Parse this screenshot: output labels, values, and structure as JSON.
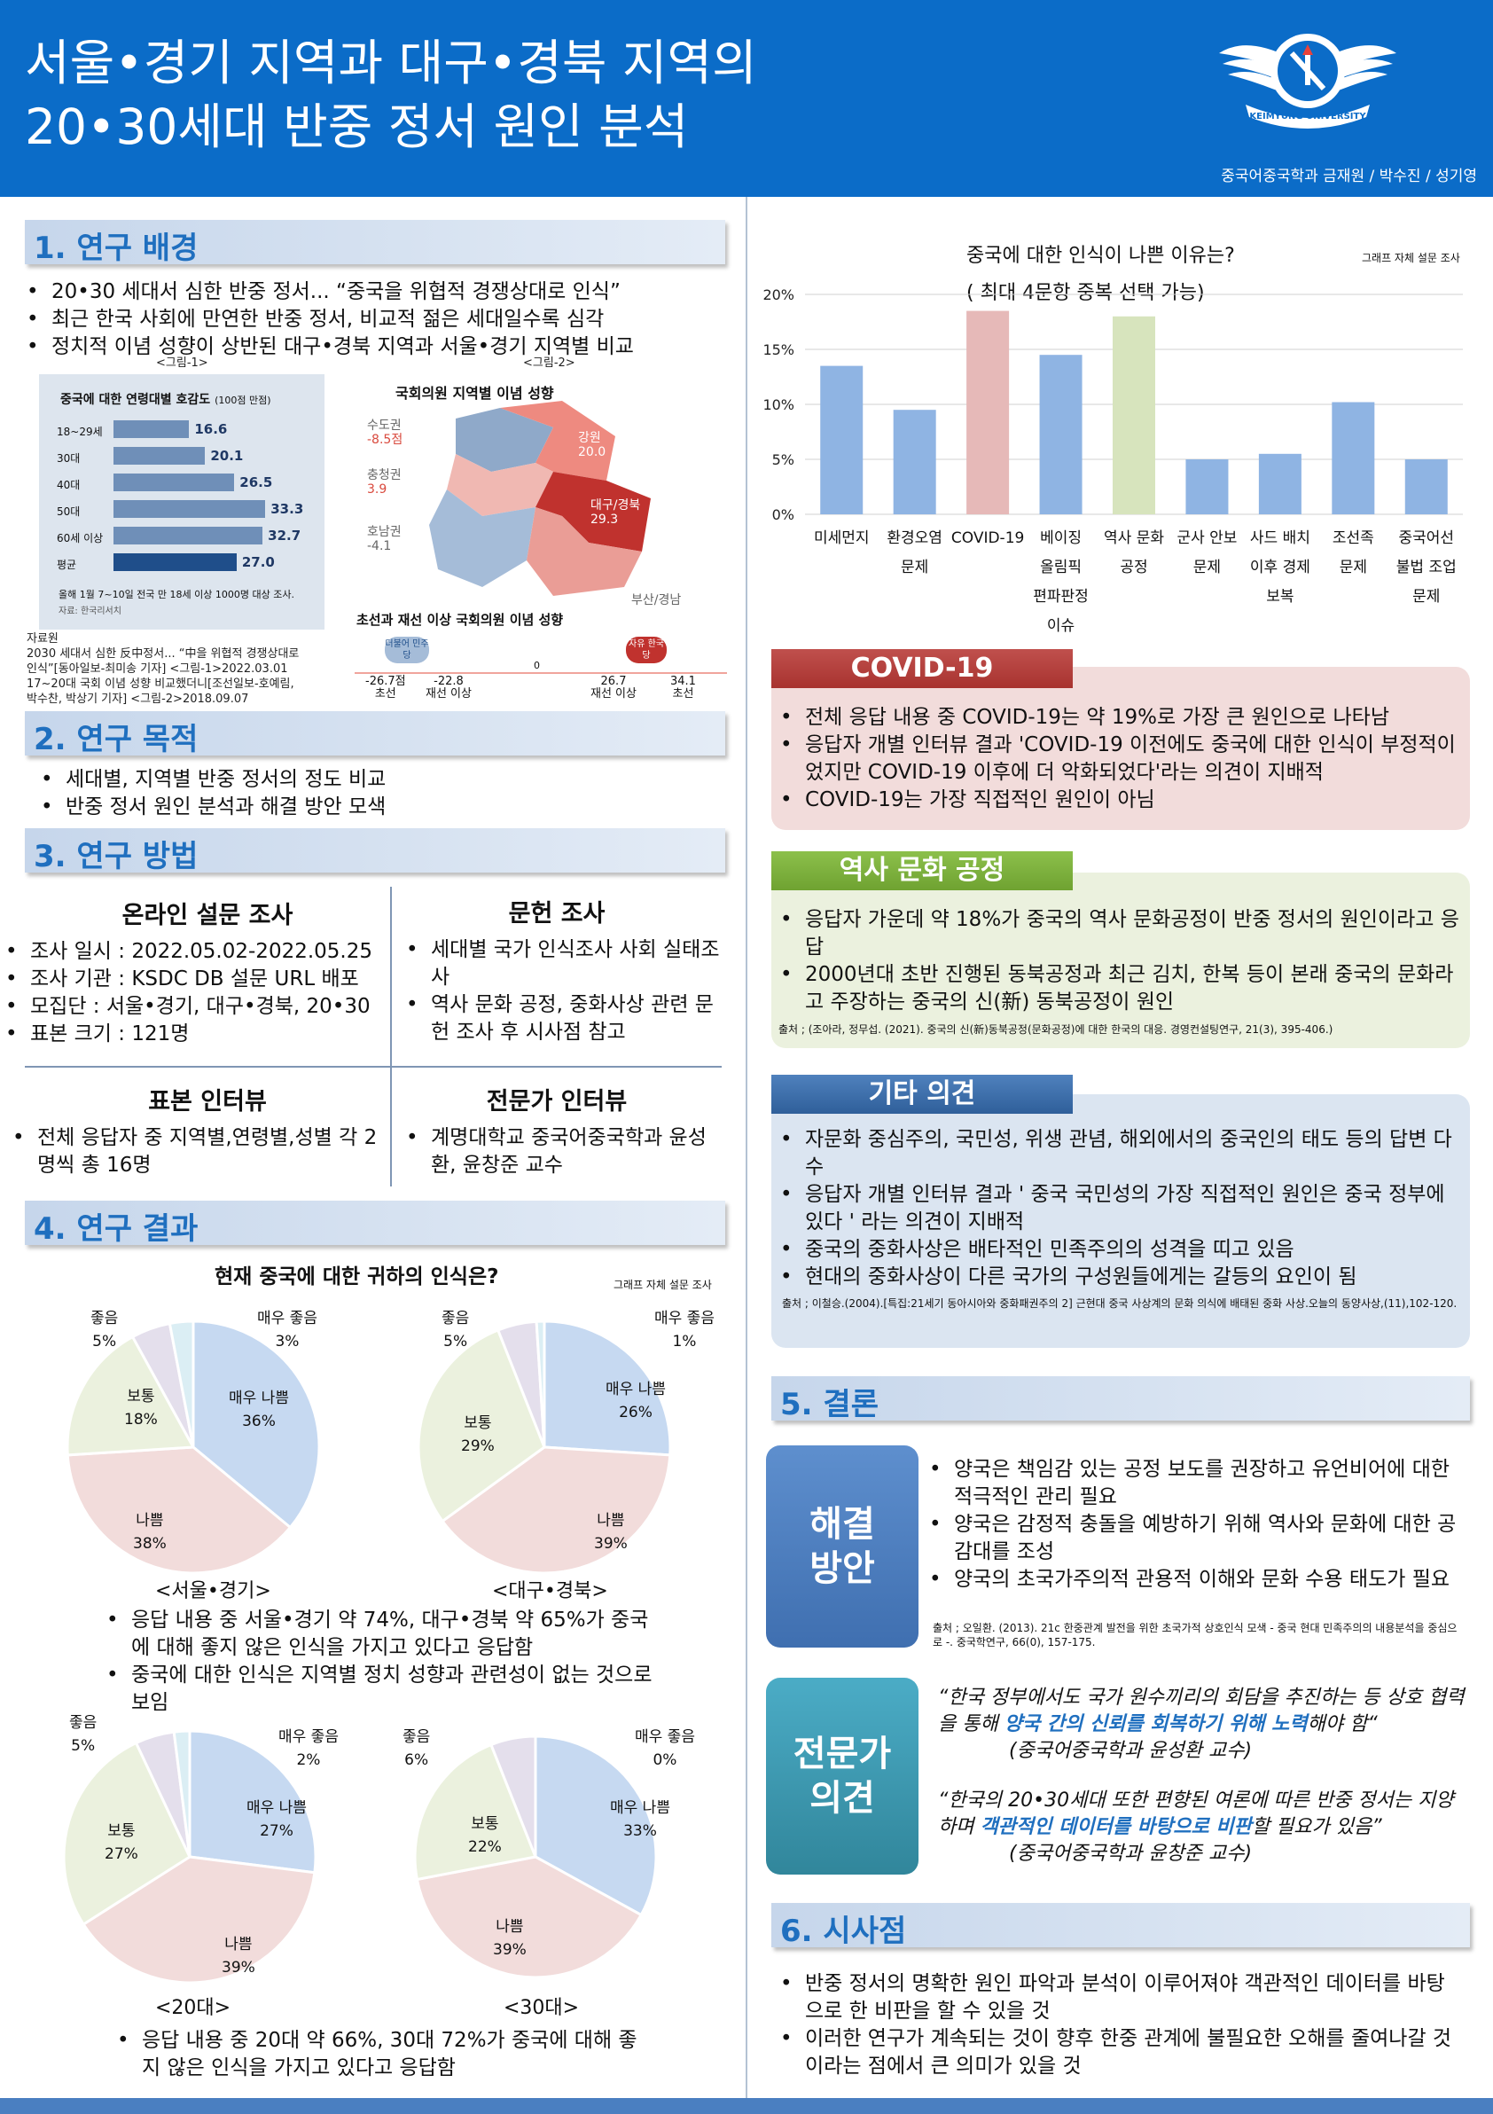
{
  "header": {
    "title_line1": "서울•경기 지역과 대구•경북 지역의",
    "title_line2": "20•30세대 반중 정서 원인 분석",
    "authors": "중국어중국학과 금재원 / 박수진 / 성기영",
    "logo_text": "KEIMYUNG UNIVERSITY"
  },
  "colors": {
    "header_blue": "#0b6cc8",
    "section_text": "#1f6fbf"
  },
  "s1": {
    "title": "1. 연구 배경",
    "bullets": [
      "20•30 세대서 심한 반중 정서... “중국을 위협적 경쟁상대로 인식”",
      "최근 한국 사회에 만연한 반중 정서, 비교적 젊은 세대일수록 심각",
      "정치적 이념 성향이 상반된 대구•경북 지역과 서울•경기 지역별 비교"
    ],
    "fig1_label": "<그림-1>",
    "fig2_label": "<그림-2>",
    "fig1": {
      "title": "중국에 대한 연령대별 호감도",
      "title_unit": "(100점 만점)",
      "rows": [
        {
          "label": "18~29세",
          "value": "16.6",
          "v": 16.6
        },
        {
          "label": "30대",
          "value": "20.1",
          "v": 20.1
        },
        {
          "label": "40대",
          "value": "26.5",
          "v": 26.5
        },
        {
          "label": "50대",
          "value": "33.3",
          "v": 33.3
        },
        {
          "label": "60세 이상",
          "value": "32.7",
          "v": 32.7
        },
        {
          "label": "평균",
          "value": "27.0",
          "v": 27.0
        }
      ],
      "note": "올해 1월 7~10일 전국 만 18세 이상 1000명 대상 조사.",
      "source": "자료: 한국리서치"
    },
    "fig2": {
      "title": "국회의원 지역별 이념 성향",
      "regions": [
        {
          "name": "수도권",
          "value": "-8.5점"
        },
        {
          "name": "충청권",
          "value": "3.9"
        },
        {
          "name": "호남권",
          "value": "-4.1"
        },
        {
          "name": "강원",
          "value": "20.0"
        },
        {
          "name": "대구/경북",
          "value": "29.3"
        },
        {
          "name": "부산/경남",
          "value": ""
        }
      ],
      "subtitle": "초선과 재선 이상 국회의원 이념 성향",
      "party_left": "더불어 민주당",
      "party_right": "자유 한국당",
      "zero": "0",
      "scale": [
        {
          "v": "-26.7점",
          "l": "초선"
        },
        {
          "v": "-22.8",
          "l": "재선 이상"
        },
        {
          "v": "26.7",
          "l": "재선 이상"
        },
        {
          "v": "34.1",
          "l": "초선"
        }
      ]
    },
    "sources": [
      "자료원",
      "2030 세대서 심한 反中정서... “中을 위협적 경쟁상대로",
      "인식”[동아일보-최미송 기자] <그림-1>2022.03.01",
      "17~20대 국회 이념 성향 비교했더니[조선일보-호예림,",
      "박수찬, 박상기 기자] <그림-2>2018.09.07"
    ]
  },
  "s2": {
    "title": "2. 연구 목적",
    "bullets": [
      "세대별, 지역별 반중 정서의 정도 비교",
      "반중 정서 원인 분석과 해결 방안 모색"
    ]
  },
  "s3": {
    "title": "3. 연구 방법",
    "online_h": "온라인 설문 조사",
    "online": [
      "조사 일시 : 2022.05.02-2022.05.25",
      "조사 기관 : KSDC DB 설문 URL 배포",
      "모집단 : 서울•경기, 대구•경북, 20•30",
      "표본 크기 : 121명"
    ],
    "lit_h": "문헌 조사",
    "lit": [
      "세대별 국가 인식조사 사회 실태조사",
      "역사 문화 공정, 중화사상 관련 문헌 조사 후 시사점 참고"
    ],
    "interview_h": "표본 인터뷰",
    "interview": [
      "전체 응답자 중 지역별,연령별,성별 각 2명씩 총 16명"
    ],
    "expert_h": "전문가 인터뷰",
    "expert": [
      "계명대학교 중국어중국학과 윤성환, 윤창준 교수"
    ]
  },
  "s4": {
    "title": "4. 연구 결과",
    "chart_title": "현재 중국에 대한 귀하의 인식은?",
    "chart_source": "그래프 자체 설문 조사",
    "bullets_region": [
      "응답 내용 중 서울•경기 약 74%, 대구•경북 약 65%가 중국에 대해 좋지 않은 인식을 가지고 있다고 응답함",
      "중국에 대한 인식은 지역별 정치 성향과 관련성이 없는 것으로 보임"
    ],
    "bullets_age": [
      "응답 내용 중 20대 약 66%, 30대 72%가 중국에 대해 좋지 않은 인식을 가지고 있다고 응답함"
    ]
  },
  "chart_data": [
    {
      "type": "pie",
      "title": "<서울•경기>",
      "categories": [
        "매우 나쁨",
        "나쁨",
        "보통",
        "좋음",
        "매우 좋음"
      ],
      "values": [
        36,
        38,
        18,
        5,
        3
      ],
      "labels": [
        "36%",
        "38%",
        "18%",
        "5%",
        "3%"
      ]
    },
    {
      "type": "pie",
      "title": "<대구•경북>",
      "categories": [
        "매우 나쁨",
        "나쁨",
        "보통",
        "좋음",
        "매우 좋음"
      ],
      "values": [
        26,
        39,
        29,
        5,
        1
      ],
      "labels": [
        "26%",
        "39%",
        "29%",
        "5%",
        "1%"
      ]
    },
    {
      "type": "pie",
      "title": "<20대>",
      "categories": [
        "매우 나쁨",
        "나쁨",
        "보통",
        "좋음",
        "매우 좋음"
      ],
      "values": [
        27,
        39,
        27,
        5,
        2
      ],
      "labels": [
        "27%",
        "39%",
        "27%",
        "5%",
        "2%"
      ]
    },
    {
      "type": "pie",
      "title": "<30대>",
      "categories": [
        "매우 나쁨",
        "나쁨",
        "보통",
        "좋음",
        "매우 좋음"
      ],
      "values": [
        33,
        39,
        22,
        6,
        0
      ],
      "labels": [
        "33%",
        "39%",
        "22%",
        "6%",
        "0%"
      ]
    },
    {
      "type": "bar",
      "title_line1": "중국에 대한 인식이 나쁜 이유는?",
      "title_line2": "( 최대 4문항 중복 선택 가능)",
      "source": "그래프 자체 설문 조사",
      "categories": [
        [
          "미세먼지"
        ],
        [
          "환경오염",
          "문제"
        ],
        [
          "COVID-19"
        ],
        [
          "베이징",
          "올림픽",
          "편파판정",
          "이슈"
        ],
        [
          "역사 문화",
          "공정"
        ],
        [
          "군사 안보",
          "문제"
        ],
        [
          "사드 배치",
          "이후 경제",
          "보복"
        ],
        [
          "조선족",
          "문제"
        ],
        [
          "중국어선",
          "불법 조업",
          "문제"
        ]
      ],
      "values": [
        13.5,
        9.5,
        18.5,
        14.5,
        18,
        5,
        5.5,
        10.2,
        5
      ],
      "colors": [
        "#8fb4e3",
        "#8fb4e3",
        "#e6b9b8",
        "#8fb4e3",
        "#d7e4bd",
        "#8fb4e3",
        "#8fb4e3",
        "#8fb4e3",
        "#8fb4e3"
      ],
      "yticks": [
        "0%",
        "5%",
        "10%",
        "15%",
        "20%"
      ],
      "ylim": [
        0,
        20
      ]
    }
  ],
  "covid": {
    "head": "COVID-19",
    "bullets": [
      "전체 응답 내용 중 COVID-19는 약 19%로 가장 큰 원인으로 나타남",
      "응답자 개별 인터뷰 결과 'COVID-19 이전에도 중국에 대한 인식이 부정적이었지만 COVID-19 이후에 더 악화되었다'라는 의견이 지배적",
      "COVID-19는 가장 직접적인 원인이 아님"
    ]
  },
  "history": {
    "head": "역사 문화 공정",
    "bullets": [
      "응답자 가운데 약 18%가 중국의 역사 문화공정이 반중 정서의 원인이라고 응답",
      "2000년대 초반 진행된 동북공정과 최근 김치, 한복 등이 본래 중국의 문화라고 주장하는 중국의 신(新) 동북공정이 원인"
    ],
    "source": "출처 ; (조아라, 정무섭. (2021). 중국의 신(新)동북공정(문화공정)에 대한 한국의 대응. 경영컨설팅연구, 21(3), 395-406.)"
  },
  "other": {
    "head": "기타 의견",
    "bullets": [
      "자문화 중심주의, 국민성, 위생 관념, 해외에서의 중국인의 태도 등의 답변 다수",
      "응답자 개별 인터뷰 결과  ' 중국 국민성의 가장 직접적인 원인은 중국 정부에 있다 ' 라는 의견이 지배적",
      "중국의 중화사상은 배타적인 민족주의의 성격을 띠고 있음",
      "현대의 중화사상이 다른 국가의 구성원들에게는 갈등의 요인이 됨"
    ],
    "source": "출처 ; 이철승.(2004).[특집:21세기 동아시아와 중화패권주의 2] 근현대 중국 사상계의 문화 의식에 배태된 중화 사상.오늘의 동양사상,(11),102-120."
  },
  "s5": {
    "title": "5. 결론",
    "solution_label": "해결 방안",
    "solution": [
      "양국은 책임감 있는 공정 보도를 권장하고 유언비어에 대한 적극적인 관리 필요",
      "양국은 감정적 충돌을 예방하기 위해 역사와 문화에 대한 공감대를 조성",
      "양국의 초국가주의적 관용적 이해와 문화 수용 태도가 필요"
    ],
    "solution_source": "출처 ; 오일환. (2013). 21c 한중관계 발전을 위한 초국가적 상호인식 모색 - 중국 현대 민족주의의 내용분석을 중심으로 -. 중국학연구, 66(0), 157-175.",
    "expert_label": "전문가 의견",
    "q1_a": "“한국 정부에서도 국가 원수끼리의 회담을 추진하는 등 상호 협력을 통해 ",
    "q1_b": "양국 간의 신뢰를 회복하기 위해 노력",
    "q1_c": "해야 함“",
    "q1_who": "(중국어중국학과 윤성환 교수)",
    "q2_a": "“한국의 20•30세대 또한 편향된 여론에 따른 반중 정서는 지양하며 ",
    "q2_b": "객관적인 데이터를 바탕으로 비판",
    "q2_c": "할 필요가 있음”",
    "q2_who": "(중국어중국학과 윤창준 교수)"
  },
  "s6": {
    "title": "6. 시사점",
    "bullets": [
      "반중 정서의 명확한 원인 파악과 분석이 이루어져야 객관적인 데이터를 바탕으로 한 비판을 할 수 있을 것",
      "이러한 연구가 계속되는 것이 향후 한중 관계에 불필요한 오해를 줄여나갈 것이라는 점에서 큰 의미가 있을 것"
    ]
  }
}
